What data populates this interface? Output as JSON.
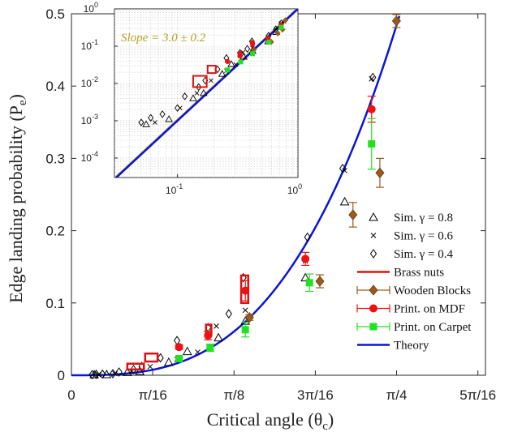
{
  "chart_data": [
    {
      "type": "scatter",
      "xlabel": "Critical angle (θ",
      "xlabel_sub": "c",
      "xlabel_end": ")",
      "ylabel": "Edge landing probability (P",
      "ylabel_sub": "e",
      "ylabel_end": ")",
      "xlim": [
        0,
        1.0
      ],
      "ylim": [
        0,
        0.5
      ],
      "x_ticks": [
        {
          "value": 0,
          "label": "0"
        },
        {
          "value": 0.19635,
          "label": "π/16"
        },
        {
          "value": 0.392699,
          "label": "π/8"
        },
        {
          "value": 0.589049,
          "label": "3π/16"
        },
        {
          "value": 0.785398,
          "label": "π/4"
        },
        {
          "value": 0.981748,
          "label": "5π/16"
        }
      ],
      "y_ticks": [
        {
          "value": 0,
          "label": "0"
        },
        {
          "value": 0.1,
          "label": "0.1"
        },
        {
          "value": 0.2,
          "label": "0.2"
        },
        {
          "value": 0.3,
          "label": "0.3"
        },
        {
          "value": 0.4,
          "label": "0.4"
        },
        {
          "value": 0.5,
          "label": "0.5"
        }
      ],
      "legend_position": "right",
      "series": [
        {
          "name": "Sim. γ = 0.8",
          "marker": "triangle",
          "color": "#000000",
          "x": [
            0.055,
            0.085,
            0.135,
            0.165,
            0.235,
            0.28,
            0.355,
            0.42,
            0.565,
            0.66
          ],
          "y": [
            0.0008,
            0.0011,
            0.004,
            0.0055,
            0.018,
            0.033,
            0.052,
            0.075,
            0.135,
            0.24
          ]
        },
        {
          "name": "Sim. γ = 0.6",
          "marker": "x",
          "color": "#000000",
          "x": [
            0.065,
            0.105,
            0.145,
            0.19,
            0.255,
            0.305,
            0.35,
            0.42,
            0.565,
            0.66,
            0.725
          ],
          "y": [
            0.0009,
            0.0022,
            0.0055,
            0.012,
            0.022,
            0.032,
            0.068,
            0.09,
            0.158,
            0.283,
            0.41
          ]
        },
        {
          "name": "Sim. γ = 0.4",
          "marker": "diamond",
          "color": "#000000",
          "x": [
            0.05,
            0.06,
            0.075,
            0.1,
            0.115,
            0.15,
            0.17,
            0.215,
            0.255,
            0.33,
            0.38,
            0.415,
            0.57,
            0.655,
            0.728
          ],
          "y": [
            0.0009,
            0.0012,
            0.0015,
            0.0022,
            0.0045,
            0.008,
            0.012,
            0.024,
            0.048,
            0.066,
            0.085,
            0.135,
            0.191,
            0.286,
            0.412
          ]
        },
        {
          "name": "Brass nuts",
          "marker": "rect",
          "color": "#e01010",
          "rects": [
            {
              "x0": 0.135,
              "x1": 0.175,
              "y0": 0.008,
              "y1": 0.016
            },
            {
              "x0": 0.178,
              "x1": 0.208,
              "y0": 0.019,
              "y1": 0.03
            },
            {
              "x0": 0.325,
              "x1": 0.338,
              "y0": 0.055,
              "y1": 0.07
            },
            {
              "x0": 0.41,
              "x1": 0.427,
              "y0": 0.1,
              "y1": 0.138
            }
          ]
        },
        {
          "name": "Wooden Blocks",
          "marker": "diamond-filled",
          "color": "#9a5a1c",
          "x": [
            0.43,
            0.6,
            0.68,
            0.745,
            0.785
          ],
          "y": [
            0.08,
            0.13,
            0.222,
            0.28,
            0.49
          ],
          "err": [
            0.004,
            0.009,
            0.017,
            0.02,
            0.009
          ]
        },
        {
          "name": "Print. on MDF",
          "marker": "circle",
          "color": "#ee1111",
          "x": [
            0.26,
            0.33,
            0.42,
            0.565,
            0.725
          ],
          "y": [
            0.039,
            0.055,
            0.117,
            0.161,
            0.368
          ],
          "err": [
            0.003,
            0.006,
            0.014,
            0.009,
            0.018
          ]
        },
        {
          "name": "Print. on Carpet",
          "marker": "square",
          "color": "#22e022",
          "x": [
            0.26,
            0.335,
            0.42,
            0.575,
            0.725
          ],
          "y": [
            0.023,
            0.038,
            0.063,
            0.128,
            0.32
          ],
          "err": [
            0.002,
            0.005,
            0.01,
            0.012,
            0.035
          ]
        },
        {
          "name": "Theory",
          "marker": "line",
          "color": "#0a14d8",
          "formula": "P_e = 1.0 * theta^3"
        }
      ]
    },
    {
      "type": "scatter",
      "scale": "log-log",
      "xlim": [
        0.03,
        1.0
      ],
      "ylim": [
        3e-05,
        1.0
      ],
      "grid": true,
      "x_ticks": [
        {
          "value": 0.1,
          "label": "10",
          "exp": "-1"
        },
        {
          "value": 1.0,
          "label": "10",
          "exp": "0"
        }
      ],
      "y_ticks": [
        {
          "value": 0.0001,
          "label": "10",
          "exp": "-4"
        },
        {
          "value": 0.001,
          "label": "10",
          "exp": "-3"
        },
        {
          "value": 0.01,
          "label": "10",
          "exp": "-2"
        },
        {
          "value": 0.1,
          "label": "10",
          "exp": "-1"
        },
        {
          "value": 1.0,
          "label": "10",
          "exp": "0"
        }
      ],
      "annotation": "Slope = 3.0 ± 0.2",
      "fit_line": {
        "color": "#b8a020",
        "coef": 1.05,
        "exponent": 3.0
      },
      "theory_line": {
        "color": "#0a14d8",
        "coef": 1.0,
        "exponent": 3.0
      }
    }
  ],
  "colors": {
    "theory": "#0a14d8",
    "fit": "#b8a020",
    "brass": "#e01010",
    "wood": "#9a5a1c",
    "mdf": "#ee1111",
    "carpet": "#22e022"
  }
}
